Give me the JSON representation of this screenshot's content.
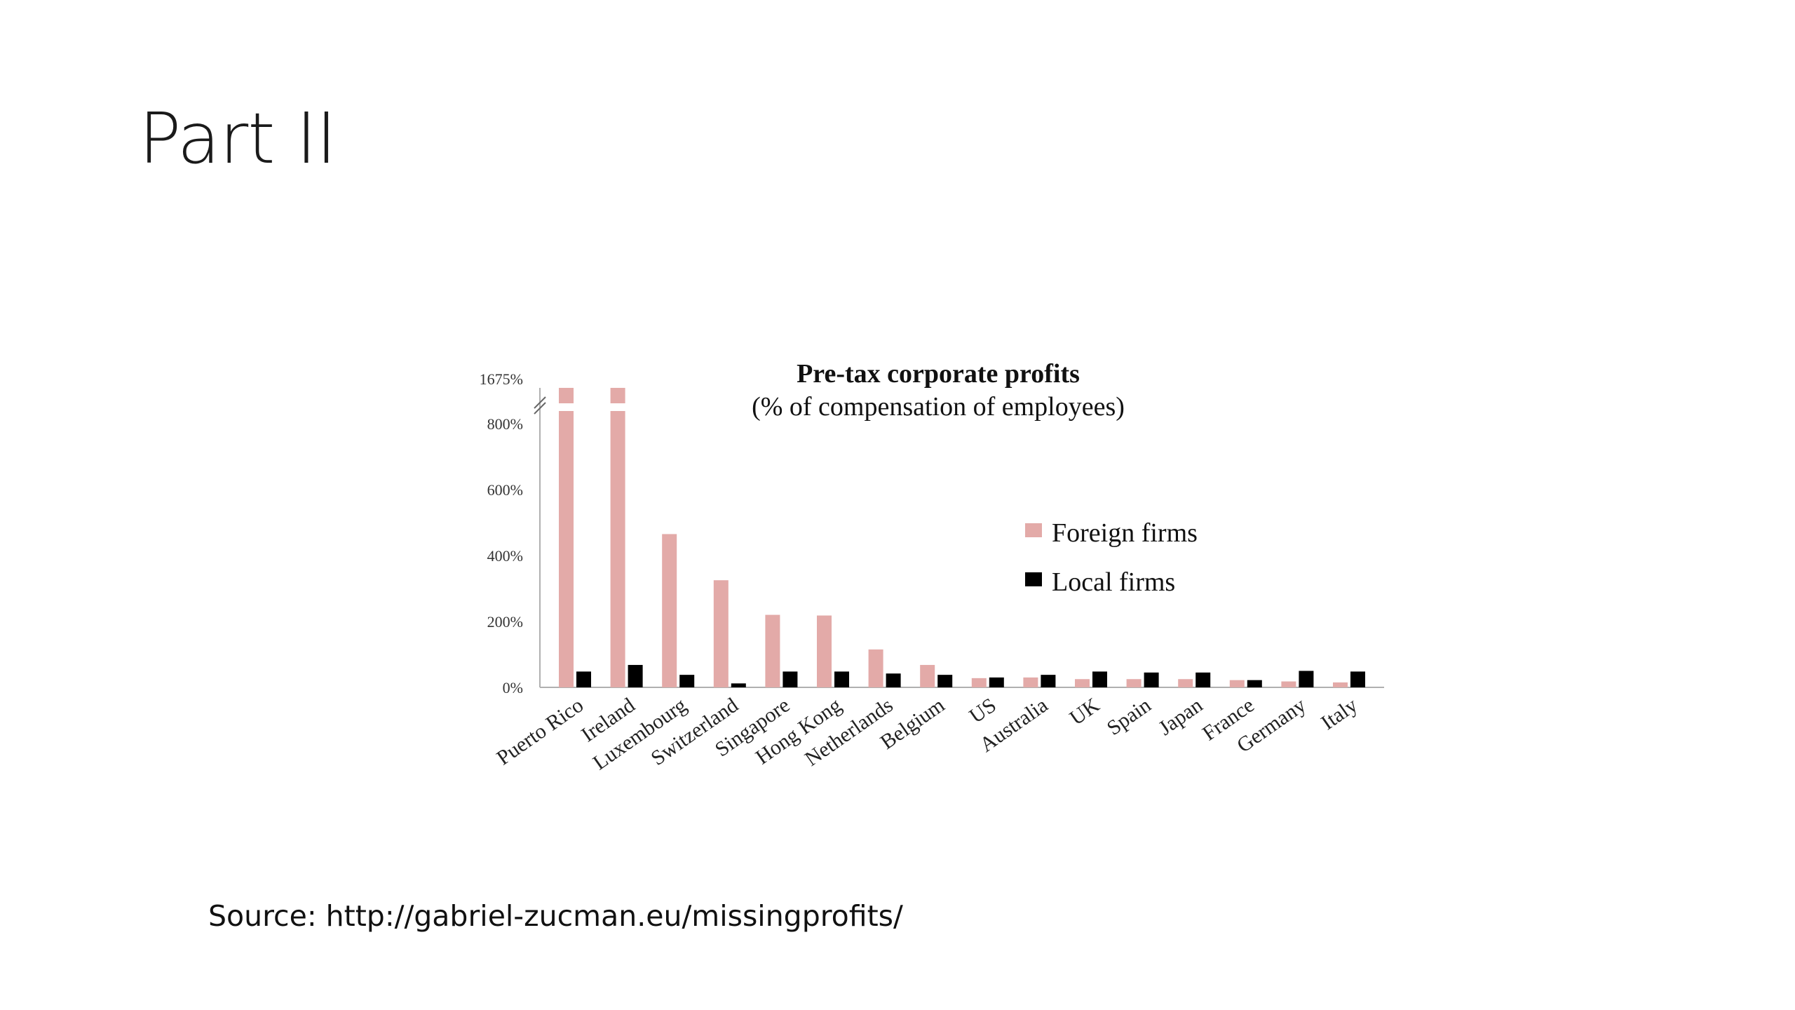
{
  "slide": {
    "title": "Part II",
    "source": "Source: http://gabriel-zucman.eu/missingprofits/"
  },
  "chart_data": {
    "type": "bar",
    "title": "Pre-tax corporate profits",
    "subtitle": "(% of compensation of employees)",
    "categories": [
      "Puerto Rico",
      "Ireland",
      "Luxembourg",
      "Switzerland",
      "Singapore",
      "Hong Kong",
      "Netherlands",
      "Belgium",
      "US",
      "Australia",
      "UK",
      "Spain",
      "Japan",
      "France",
      "Germany",
      "Italy"
    ],
    "series": [
      {
        "name": "Foreign firms",
        "color": "#e3aaa8",
        "values": [
          1675,
          805,
          465,
          325,
          220,
          218,
          115,
          68,
          28,
          30,
          25,
          25,
          25,
          22,
          18,
          15
        ]
      },
      {
        "name": "Local firms",
        "color": "#000000",
        "values": [
          48,
          68,
          38,
          12,
          48,
          48,
          42,
          38,
          30,
          38,
          48,
          45,
          45,
          22,
          50,
          48
        ]
      }
    ],
    "yticks": [
      "0%",
      "200%",
      "400%",
      "600%",
      "800%"
    ],
    "ybreak_label": "1675%",
    "ylim": [
      0,
      800
    ],
    "axis_break": true,
    "legend_position": "right",
    "grid": false
  }
}
